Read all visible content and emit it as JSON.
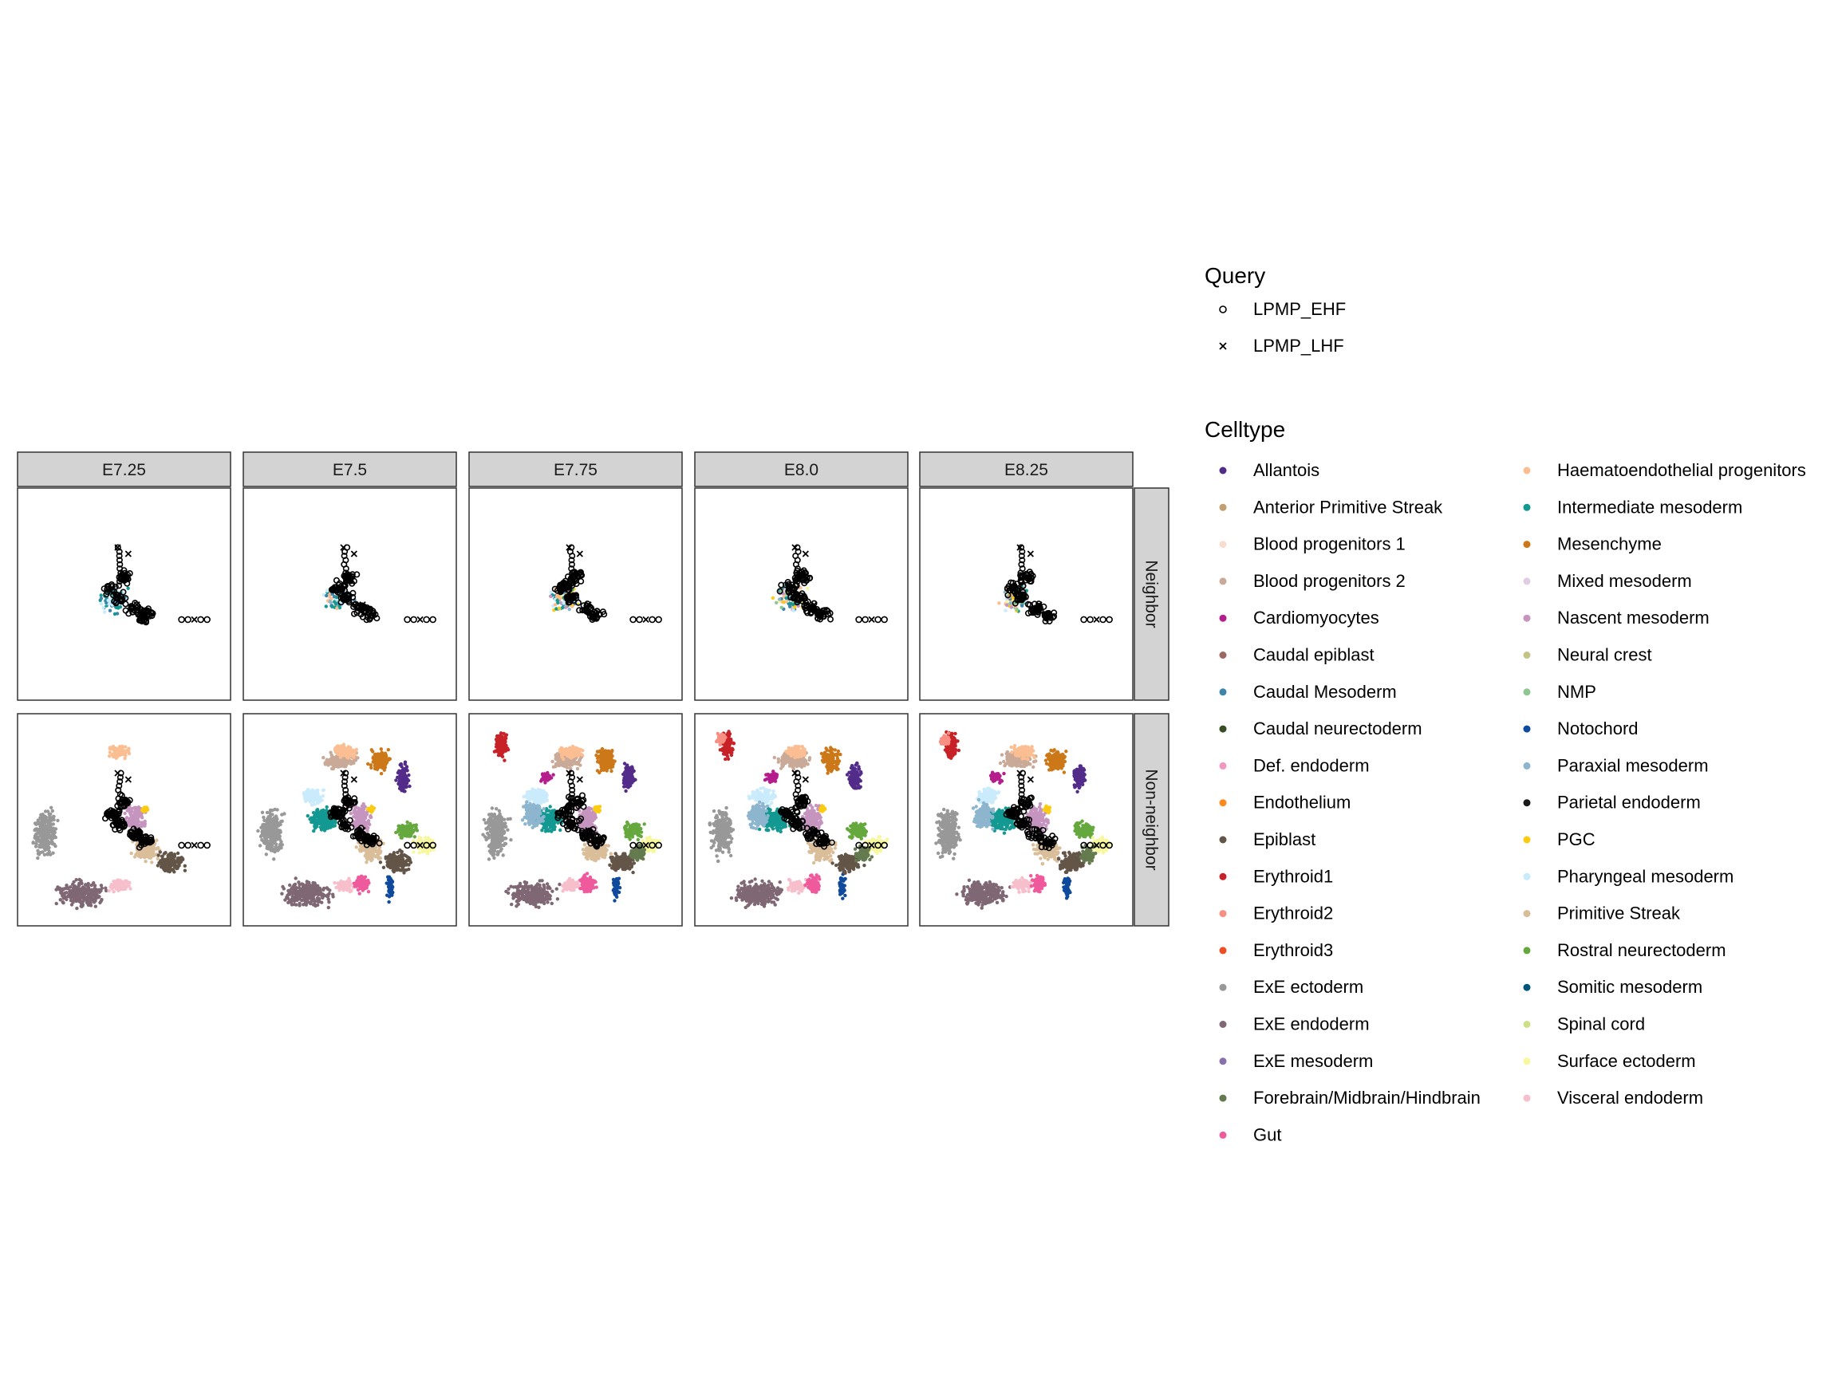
{
  "chart_data": {
    "type": "scatter",
    "facet_columns": [
      "E7.25",
      "E7.5",
      "E7.75",
      "E8.0",
      "E8.25"
    ],
    "facet_rows": [
      "Neighbor",
      "Non-neighbor"
    ],
    "axes_visible": false,
    "grid": false,
    "legend_position": "right",
    "query_legend": {
      "title": "Query",
      "entries": [
        {
          "label": "LPMP_EHF",
          "shape": "open-circle"
        },
        {
          "label": "LPMP_LHF",
          "shape": "cross"
        }
      ]
    },
    "celltype_legend": {
      "title": "Celltype",
      "entries": [
        {
          "label": "Allantois",
          "color": "#532C8A"
        },
        {
          "label": "Anterior Primitive Streak",
          "color": "#C19F70"
        },
        {
          "label": "Blood progenitors 1",
          "color": "#F9DECF"
        },
        {
          "label": "Blood progenitors 2",
          "color": "#C9A997"
        },
        {
          "label": "Cardiomyocytes",
          "color": "#B51D8D"
        },
        {
          "label": "Caudal epiblast",
          "color": "#9E6762"
        },
        {
          "label": "Caudal Mesoderm",
          "color": "#3F84AA"
        },
        {
          "label": "Caudal neurectoderm",
          "color": "#354E23"
        },
        {
          "label": "Def. endoderm",
          "color": "#F397C0"
        },
        {
          "label": "Endothelium",
          "color": "#FF891C"
        },
        {
          "label": "Epiblast",
          "color": "#635547"
        },
        {
          "label": "Erythroid1",
          "color": "#C72228"
        },
        {
          "label": "Erythroid2",
          "color": "#F79083"
        },
        {
          "label": "Erythroid3",
          "color": "#EF4E22"
        },
        {
          "label": "ExE ectoderm",
          "color": "#989898"
        },
        {
          "label": "ExE endoderm",
          "color": "#7F6874"
        },
        {
          "label": "ExE mesoderm",
          "color": "#8870AD"
        },
        {
          "label": "Forebrain/Midbrain/Hindbrain",
          "color": "#647A4F"
        },
        {
          "label": "Gut",
          "color": "#EF5A9D"
        },
        {
          "label": "Haematoendothelial progenitors",
          "color": "#FBBE92"
        },
        {
          "label": "Intermediate mesoderm",
          "color": "#139992"
        },
        {
          "label": "Mesenchyme",
          "color": "#CC7818"
        },
        {
          "label": "Mixed mesoderm",
          "color": "#DFCDE4"
        },
        {
          "label": "Nascent mesoderm",
          "color": "#C594BF"
        },
        {
          "label": "Neural crest",
          "color": "#C3C388"
        },
        {
          "label": "NMP",
          "color": "#8EC792"
        },
        {
          "label": "Notochord",
          "color": "#0F4A9C"
        },
        {
          "label": "Paraxial mesoderm",
          "color": "#8DB5CE"
        },
        {
          "label": "Parietal endoderm",
          "color": "#1A1A1A"
        },
        {
          "label": "PGC",
          "color": "#FACB12"
        },
        {
          "label": "Pharyngeal mesoderm",
          "color": "#C9EBFB"
        },
        {
          "label": "Primitive Streak",
          "color": "#DABE99"
        },
        {
          "label": "Rostral neurectoderm",
          "color": "#65A83E"
        },
        {
          "label": "Somitic mesoderm",
          "color": "#005579"
        },
        {
          "label": "Spinal cord",
          "color": "#CDE088"
        },
        {
          "label": "Surface ectoderm",
          "color": "#F7F79E"
        },
        {
          "label": "Visceral endoderm",
          "color": "#F6BFCB"
        }
      ]
    }
  }
}
